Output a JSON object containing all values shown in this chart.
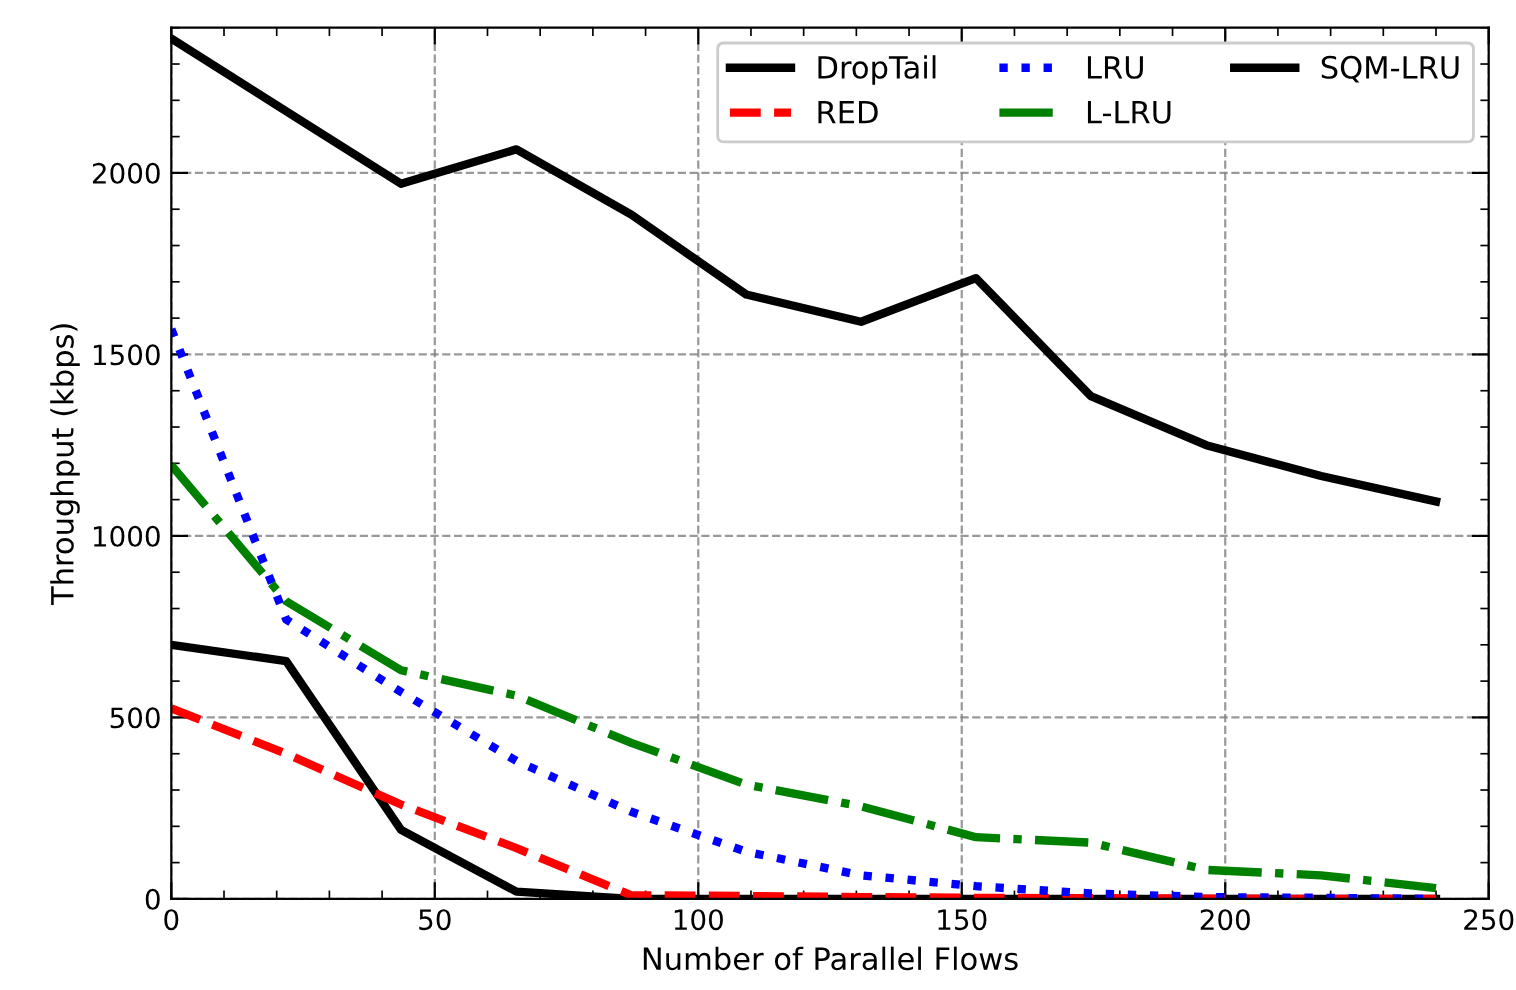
{
  "chart_data": {
    "type": "line",
    "xlabel": "Number of Parallel Flows",
    "ylabel": "Throughput (kbps)",
    "x": [
      0,
      21.8,
      43.6,
      65.5,
      87.3,
      109.1,
      130.9,
      152.7,
      174.5,
      196.4,
      218.2,
      240
    ],
    "series": [
      {
        "name": "DropTail",
        "color": "#000000",
        "line_style": "solid",
        "values": [
          700,
          655,
          190,
          20,
          0,
          0,
          0,
          0,
          0,
          0,
          0,
          0
        ]
      },
      {
        "name": "RED",
        "color": "#ff0000",
        "line_style": "dashed",
        "values": [
          525,
          400,
          260,
          140,
          10,
          8,
          5,
          3,
          2,
          1,
          0,
          0
        ]
      },
      {
        "name": "LRU",
        "color": "#0000ff",
        "line_style": "dotted",
        "values": [
          1570,
          770,
          570,
          380,
          240,
          130,
          65,
          35,
          15,
          5,
          3,
          0
        ]
      },
      {
        "name": "L-LRU",
        "color": "#008000",
        "line_style": "dashdot",
        "values": [
          1195,
          820,
          630,
          560,
          430,
          315,
          255,
          170,
          155,
          80,
          65,
          30
        ]
      },
      {
        "name": "SQM-LRU",
        "color": "#000000",
        "line_style": "solid",
        "values": [
          2370,
          2170,
          1970,
          2065,
          1885,
          1665,
          1590,
          1710,
          1385,
          1250,
          1165,
          1095
        ]
      }
    ],
    "xlim": [
      0,
      250
    ],
    "ylim": [
      0,
      2400
    ],
    "xticks": [
      0,
      50,
      100,
      150,
      200,
      250
    ],
    "yticks": [
      0,
      500,
      1000,
      1500,
      2000
    ],
    "grid": true,
    "legend": "top right",
    "marker": "none"
  }
}
